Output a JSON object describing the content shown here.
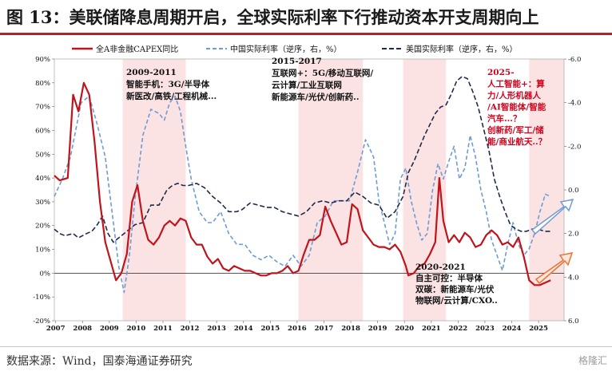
{
  "page": {
    "title": "图 13：美联储降息周期开启，全球实际利率下行推动资本开支周期向上",
    "source": "数据来源：Wind，国泰海通证券研究",
    "watermark": "格隆汇"
  },
  "colors": {
    "capex": "#c0141c",
    "china": "#6f9bd3",
    "us": "#1f2a4d",
    "shade": "#fbe3e3",
    "annotation_red": "#d0021b",
    "title_rule": "#b22222"
  },
  "annotations": {
    "p1": {
      "period": "2009-2011",
      "lines": [
        "智能手机：3G/半导体",
        "新医改/高铁/工程机械..."
      ]
    },
    "p2": {
      "period": "2015-2017",
      "lines": [
        "互联网+：5G/移动互联网/",
        "云计算/工业互联网",
        "新能源车/光伏/创新药.."
      ]
    },
    "p3": {
      "period": "2020-2021",
      "lines": [
        "自主可控：半导体",
        "双碳：新能源车/光伏",
        "物联网/云计算/CXO.."
      ]
    },
    "p4": {
      "period": "2025-",
      "lines": [
        "人工智能+：算",
        "力/人形机器人",
        "/AI智能体/智能",
        "汽车...？",
        "创新药/军工/储",
        "能/商业航天..？"
      ]
    }
  },
  "chart_data": {
    "type": "line",
    "x_ticks": [
      "2007",
      "2008",
      "2009",
      "2010",
      "2011",
      "2012",
      "2013",
      "2014",
      "2015",
      "2016",
      "2017",
      "2018",
      "2019",
      "2020",
      "2021",
      "2022",
      "2023",
      "2024",
      "2025"
    ],
    "xlim": [
      2007.0,
      2026.0
    ],
    "left_axis": {
      "ylim": [
        -20,
        90
      ],
      "ticks": [
        "90%",
        "80%",
        "70%",
        "60%",
        "50%",
        "40%",
        "30%",
        "20%",
        "10%",
        "0%",
        "-10%",
        "-20%"
      ]
    },
    "right_axis": {
      "ylim": [
        -6,
        6
      ],
      "inverted": true,
      "ticks": [
        "-6.0",
        "-4.0",
        "-2.0",
        "0.0",
        "2.0",
        "4.0",
        "6.0"
      ]
    },
    "shaded_periods": [
      [
        2009.55,
        2011.9
      ],
      [
        2016.1,
        2018.5
      ],
      [
        2020.0,
        2021.6
      ],
      [
        2024.7,
        2026.0
      ]
    ],
    "legend": {
      "placement": "top"
    },
    "series": [
      {
        "name": "全A非金融CAPEX同比",
        "axis": "left",
        "style": "solid",
        "x": [
          2007.0,
          2007.2,
          2007.5,
          2007.7,
          2007.9,
          2008.1,
          2008.3,
          2008.5,
          2008.7,
          2008.9,
          2009.1,
          2009.3,
          2009.5,
          2009.7,
          2009.9,
          2010.1,
          2010.3,
          2010.5,
          2010.7,
          2010.9,
          2011.1,
          2011.3,
          2011.5,
          2011.7,
          2011.9,
          2012.1,
          2012.3,
          2012.5,
          2012.7,
          2012.9,
          2013.1,
          2013.3,
          2013.5,
          2013.7,
          2013.9,
          2014.1,
          2014.3,
          2014.5,
          2014.7,
          2014.9,
          2015.1,
          2015.3,
          2015.5,
          2015.7,
          2015.9,
          2016.1,
          2016.3,
          2016.5,
          2016.7,
          2016.9,
          2017.1,
          2017.3,
          2017.5,
          2017.7,
          2017.9,
          2018.1,
          2018.3,
          2018.5,
          2018.7,
          2018.9,
          2019.1,
          2019.3,
          2019.5,
          2019.7,
          2019.9,
          2020.1,
          2020.2,
          2020.4,
          2020.6,
          2020.8,
          2021.0,
          2021.2,
          2021.35,
          2021.5,
          2021.7,
          2021.9,
          2022.1,
          2022.3,
          2022.5,
          2022.7,
          2022.9,
          2023.1,
          2023.3,
          2023.5,
          2023.7,
          2023.9,
          2024.1,
          2024.3,
          2024.5,
          2024.7,
          2024.9,
          2025.1,
          2025.3,
          2025.5
        ],
        "values": [
          41,
          39,
          40,
          75,
          68,
          80,
          75,
          55,
          30,
          13,
          5,
          -3,
          0,
          8,
          30,
          37,
          22,
          14,
          12,
          15,
          20,
          22,
          20,
          23,
          22,
          15,
          12,
          12,
          7,
          4,
          6,
          2,
          1,
          3,
          2,
          1,
          1,
          0,
          -1,
          -1,
          0,
          0,
          1,
          3,
          0,
          1,
          8,
          14,
          14,
          16,
          28,
          22,
          17,
          12,
          13,
          29,
          27,
          18,
          15,
          12,
          11,
          11,
          10,
          12,
          9,
          3,
          -1,
          0,
          3,
          4,
          8,
          13,
          40,
          22,
          13,
          16,
          13,
          17,
          15,
          11,
          12,
          16,
          18,
          16,
          12,
          13,
          11,
          15,
          7,
          -3,
          -5,
          -5,
          -4,
          -3
        ]
      },
      {
        "name": "中国实际利率（逆序，右，%）",
        "axis": "right",
        "style": "dashed",
        "x": [
          2007.0,
          2007.3,
          2007.6,
          2008.0,
          2008.3,
          2008.6,
          2008.9,
          2009.2,
          2009.4,
          2009.6,
          2009.8,
          2010.0,
          2010.3,
          2010.6,
          2010.9,
          2011.1,
          2011.3,
          2011.5,
          2011.7,
          2011.9,
          2012.1,
          2012.4,
          2012.7,
          2012.9,
          2013.2,
          2013.5,
          2013.8,
          2014.1,
          2014.4,
          2014.7,
          2015.0,
          2015.3,
          2015.6,
          2015.9,
          2016.2,
          2016.5,
          2016.8,
          2017.1,
          2017.4,
          2017.7,
          2018.0,
          2018.3,
          2018.6,
          2018.9,
          2019.1,
          2019.3,
          2019.5,
          2019.7,
          2019.9,
          2020.1,
          2020.3,
          2020.5,
          2020.7,
          2020.9,
          2021.1,
          2021.3,
          2021.5,
          2021.7,
          2021.9,
          2022.1,
          2022.3,
          2022.5,
          2022.7,
          2022.9,
          2023.1,
          2023.3,
          2023.5,
          2023.7,
          2023.9,
          2024.1,
          2024.3,
          2024.5,
          2024.7,
          2024.9,
          2025.1,
          2025.3,
          2025.5
        ],
        "values": [
          0.3,
          -0.5,
          -1.5,
          -4.0,
          -4.3,
          -3.0,
          -1.5,
          1.5,
          3.5,
          4.7,
          3.0,
          0.5,
          -2.5,
          -3.7,
          -3.5,
          -3.2,
          -4.0,
          -4.3,
          -3.6,
          -2.0,
          -0.5,
          1.0,
          1.5,
          1.5,
          1.0,
          2.0,
          2.5,
          2.5,
          3.0,
          3.2,
          3.0,
          3.3,
          3.5,
          3.0,
          3.5,
          3.0,
          1.5,
          1.2,
          0.5,
          0.5,
          0.5,
          -0.8,
          -2.3,
          -1.5,
          0.5,
          1.5,
          2.5,
          2.0,
          -0.5,
          -1.0,
          0.5,
          1.5,
          2.3,
          2.0,
          0.0,
          -1.2,
          -0.5,
          -1.3,
          -2.0,
          -0.5,
          -1.0,
          -2.5,
          -1.5,
          0.0,
          1.0,
          2.3,
          3.0,
          3.7,
          2.5,
          1.5,
          2.5,
          3.0,
          2.7,
          2.0,
          1.0,
          0.2,
          0.3
        ]
      },
      {
        "name": "美国实际利率（逆序，右，%）",
        "axis": "right",
        "style": "dashed",
        "x": [
          2007.0,
          2007.2,
          2007.4,
          2007.7,
          2007.9,
          2008.2,
          2008.4,
          2008.6,
          2008.8,
          2009.0,
          2009.2,
          2009.4,
          2009.6,
          2009.8,
          2010.0,
          2010.3,
          2010.6,
          2010.9,
          2011.2,
          2011.4,
          2011.6,
          2011.8,
          2012.0,
          2012.3,
          2012.6,
          2012.9,
          2013.2,
          2013.5,
          2013.8,
          2014.0,
          2014.3,
          2014.6,
          2014.9,
          2015.2,
          2015.5,
          2015.8,
          2016.1,
          2016.4,
          2016.7,
          2017.0,
          2017.3,
          2017.6,
          2017.9,
          2018.2,
          2018.5,
          2018.8,
          2019.1,
          2019.4,
          2019.7,
          2020.0,
          2020.2,
          2020.4,
          2020.6,
          2020.8,
          2021.0,
          2021.2,
          2021.4,
          2021.6,
          2021.8,
          2022.0,
          2022.2,
          2022.4,
          2022.6,
          2022.8,
          2023.0,
          2023.2,
          2023.4,
          2023.6,
          2023.8,
          2024.0,
          2024.2,
          2024.4,
          2024.6,
          2024.8,
          2025.0,
          2025.3,
          2025.5
        ],
        "values": [
          1.8,
          2.0,
          2.1,
          2.0,
          2.2,
          2.0,
          1.9,
          1.6,
          1.2,
          2.0,
          2.4,
          2.2,
          2.0,
          1.8,
          1.6,
          1.5,
          0.7,
          0.7,
          0.0,
          -0.2,
          -0.3,
          -0.2,
          -0.2,
          -0.3,
          -0.1,
          0.3,
          0.6,
          1.0,
          1.0,
          0.9,
          0.6,
          0.7,
          0.8,
          0.8,
          1.0,
          1.1,
          1.2,
          1.0,
          0.6,
          0.5,
          0.6,
          0.5,
          0.5,
          0.1,
          0.3,
          0.6,
          0.7,
          1.3,
          1.0,
          0.3,
          -0.8,
          -1.3,
          -1.9,
          -2.5,
          -3.0,
          -3.5,
          -3.8,
          -3.9,
          -4.4,
          -5.0,
          -5.2,
          -5.1,
          -4.5,
          -3.8,
          -2.8,
          -1.8,
          -0.5,
          0.3,
          1.0,
          1.6,
          1.8,
          1.9,
          1.9,
          1.8,
          1.8,
          1.9,
          1.9
        ]
      }
    ]
  }
}
